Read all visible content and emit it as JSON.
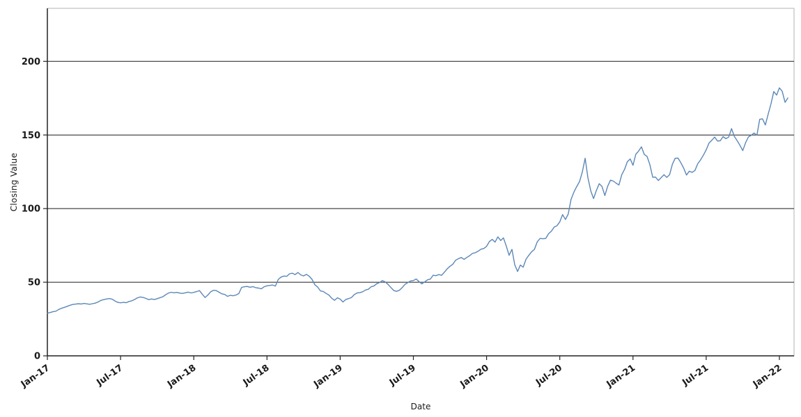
{
  "chart_data": {
    "type": "line",
    "title": "",
    "xlabel": "Date",
    "ylabel": "Closing Value",
    "x_unit": "years_since_Jan-17",
    "grid": "horizontal",
    "legend": "none",
    "xlim": [
      0,
      5.1
    ],
    "ylim": [
      0,
      236
    ],
    "y_ticks": [
      0,
      50,
      100,
      150,
      200
    ],
    "x_ticks": [
      {
        "pos": 0.0,
        "label": "Jan-17"
      },
      {
        "pos": 0.5,
        "label": "Jul-17"
      },
      {
        "pos": 1.0,
        "label": "Jan-18"
      },
      {
        "pos": 1.5,
        "label": "Jul-18"
      },
      {
        "pos": 2.0,
        "label": "Jan-19"
      },
      {
        "pos": 2.5,
        "label": "Jul-19"
      },
      {
        "pos": 3.0,
        "label": "Jan-20"
      },
      {
        "pos": 3.5,
        "label": "Jul-20"
      },
      {
        "pos": 4.0,
        "label": "Jan-21"
      },
      {
        "pos": 4.5,
        "label": "Jul-21"
      },
      {
        "pos": 5.0,
        "label": "Jan-22"
      }
    ],
    "colors": {
      "line": "#5b87b7",
      "grid": "#1a1a1a",
      "spine": "#222222",
      "frame": "#b3b3b3",
      "tick_label": "#1a1a1a",
      "background": "#ffffff"
    },
    "series": [
      {
        "name": "Closing Value",
        "x_start": 0,
        "x_step": 0.019231,
        "values": [
          29.0,
          29.4,
          30.0,
          30.3,
          31.5,
          32.3,
          32.9,
          33.6,
          34.3,
          34.9,
          35.1,
          35.4,
          35.2,
          35.6,
          35.3,
          35.0,
          35.4,
          35.8,
          36.6,
          37.6,
          38.2,
          38.6,
          38.9,
          38.5,
          37.3,
          36.3,
          36.0,
          36.3,
          36.1,
          36.9,
          37.4,
          38.3,
          39.4,
          40.0,
          39.7,
          39.0,
          38.2,
          38.6,
          38.3,
          38.8,
          39.5,
          40.1,
          41.5,
          42.6,
          43.2,
          42.8,
          43.1,
          42.6,
          42.4,
          42.8,
          43.3,
          42.7,
          43.1,
          43.6,
          44.3,
          41.9,
          39.6,
          41.3,
          43.5,
          44.5,
          44.3,
          43.2,
          42.1,
          41.7,
          40.4,
          41.1,
          40.8,
          41.3,
          42.3,
          46.5,
          46.9,
          47.1,
          46.6,
          47.0,
          46.3,
          46.0,
          45.5,
          46.9,
          47.6,
          47.8,
          48.1,
          47.4,
          51.9,
          53.5,
          54.2,
          54.0,
          55.7,
          56.1,
          55.2,
          56.6,
          55.0,
          54.3,
          55.3,
          54.1,
          51.9,
          48.3,
          46.7,
          44.1,
          43.7,
          42.4,
          41.3,
          39.1,
          37.7,
          39.4,
          38.5,
          36.6,
          38.3,
          38.9,
          39.6,
          41.6,
          42.7,
          42.9,
          43.5,
          44.7,
          45.2,
          46.9,
          47.5,
          49.0,
          49.8,
          51.1,
          50.2,
          48.5,
          46.4,
          44.4,
          43.8,
          44.5,
          46.3,
          48.5,
          49.7,
          50.9,
          51.1,
          52.2,
          50.4,
          48.9,
          50.2,
          51.6,
          52.1,
          54.7,
          54.4,
          55.2,
          54.7,
          56.8,
          59.1,
          60.8,
          62.2,
          64.9,
          66.0,
          66.8,
          65.5,
          66.9,
          68.0,
          69.6,
          70.0,
          71.1,
          72.4,
          72.9,
          74.4,
          77.6,
          79.1,
          77.2,
          80.8,
          78.3,
          80.1,
          74.5,
          68.3,
          72.3,
          61.9,
          57.3,
          61.7,
          60.2,
          65.6,
          68.3,
          70.7,
          72.3,
          77.5,
          79.7,
          79.5,
          79.7,
          82.9,
          84.7,
          87.4,
          88.4,
          91.0,
          95.9,
          92.6,
          96.3,
          106.3,
          111.1,
          114.9,
          118.3,
          124.8,
          134.2,
          120.9,
          112.0,
          106.8,
          112.3,
          116.9,
          115.0,
          108.9,
          115.1,
          119.3,
          118.7,
          117.3,
          116.0,
          122.9,
          126.7,
          131.9,
          133.7,
          129.4,
          136.9,
          139.1,
          142.0,
          136.8,
          135.4,
          129.9,
          121.3,
          121.4,
          119.1,
          121.0,
          123.0,
          121.2,
          123.0,
          130.2,
          134.2,
          134.3,
          131.1,
          127.4,
          122.8,
          125.4,
          124.6,
          125.9,
          130.5,
          133.1,
          136.3,
          139.9,
          144.5,
          146.4,
          148.6,
          145.9,
          146.1,
          148.9,
          147.5,
          148.6,
          154.3,
          149.0,
          146.1,
          142.9,
          139.4,
          144.8,
          148.7,
          149.8,
          151.3,
          149.8,
          160.6,
          161.0,
          156.8,
          164.0,
          171.1,
          179.5,
          177.1,
          182.0,
          179.7,
          172.2,
          175.1
        ]
      }
    ]
  }
}
